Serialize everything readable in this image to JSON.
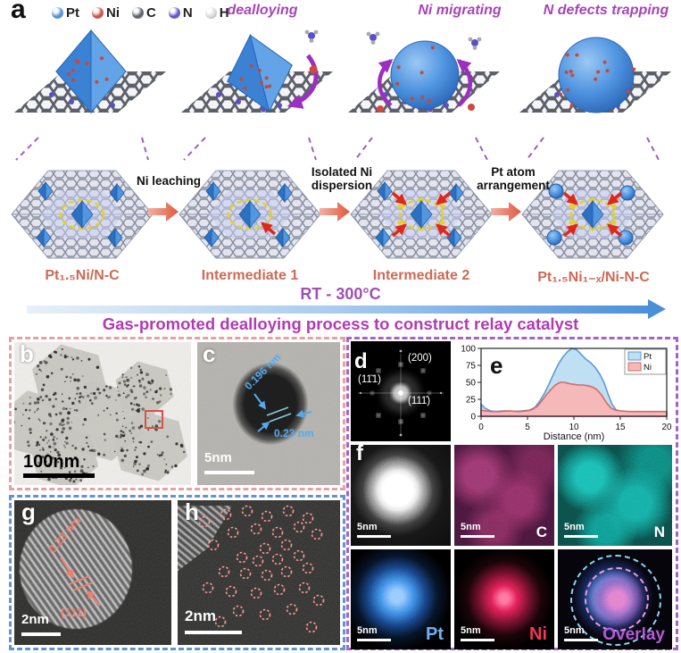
{
  "colors": {
    "accent_magenta": "#b23ab5",
    "accent_purple": "#a843b8",
    "structure_red": "#cd6a55",
    "box_bc_border": "#e8a0a0",
    "box_gh_border": "#6292d2",
    "box_def_border": "#a563c8",
    "process_arrow_blue": "#4a90d9"
  },
  "panel_a": {
    "label": "a",
    "legend": [
      {
        "element": "Pt",
        "color": "#4a90d9"
      },
      {
        "element": "Ni",
        "color": "#cf4a3e"
      },
      {
        "element": "C",
        "color": "#555a64"
      },
      {
        "element": "N",
        "color": "#5b4fc9"
      },
      {
        "element": "H",
        "color": "#d9d9d9"
      }
    ],
    "stage_captions": [
      "dealloying",
      "Ni migrating",
      "N defects trapping"
    ],
    "step_labels": [
      [
        "Ni leaching",
        ""
      ],
      [
        "Isolated Ni",
        "dispersion"
      ],
      [
        "Pt atom",
        "arrangement"
      ]
    ],
    "structure_labels": [
      "Pt₁.₅Ni/N-C",
      "Intermediate 1",
      "Intermediate 2",
      "Pt₁.₅Ni₁₋ₓ/Ni-N-C"
    ],
    "temperature": "RT - 300°C",
    "process_caption": "Gas-promoted dealloying process to construct relay catalyst"
  },
  "panel_b": {
    "label": "b",
    "scale_bar": "100nm"
  },
  "panel_c": {
    "label": "c",
    "d_spacing_1": "0.196 nm",
    "d_spacing_2": "0.23 nm",
    "scale_bar": "5nm"
  },
  "panel_d": {
    "label": "d",
    "reflection_left": "(11̄1)",
    "reflection_top": "(200)",
    "reflection_right": "(111̄)"
  },
  "panel_e": {
    "label": "e"
  },
  "chart_data": {
    "type": "area",
    "title": "",
    "xlabel": "Distance (nm)",
    "ylabel": "",
    "xlim": [
      0,
      20
    ],
    "ylim": [
      0,
      100
    ],
    "xticks": [
      0,
      5,
      10,
      15,
      20
    ],
    "yticks": [
      0,
      25,
      50,
      75,
      100
    ],
    "grid": false,
    "legend_position": "top-right",
    "series": [
      {
        "name": "Pt",
        "fill": "#bfdff2",
        "stroke": "#5b9bd5",
        "points": [
          [
            0,
            18
          ],
          [
            0.4,
            12
          ],
          [
            1,
            8
          ],
          [
            1.5,
            7
          ],
          [
            2.5,
            8
          ],
          [
            3.5,
            7
          ],
          [
            4.5,
            8
          ],
          [
            5.2,
            9
          ],
          [
            5.8,
            13
          ],
          [
            6.3,
            22
          ],
          [
            6.8,
            33
          ],
          [
            7.3,
            47
          ],
          [
            7.8,
            62
          ],
          [
            8.3,
            76
          ],
          [
            8.8,
            87
          ],
          [
            9.3,
            95
          ],
          [
            9.8,
            100
          ],
          [
            10.3,
            98
          ],
          [
            10.8,
            91
          ],
          [
            11.3,
            84
          ],
          [
            11.8,
            79
          ],
          [
            12.3,
            72
          ],
          [
            12.8,
            62
          ],
          [
            13.3,
            48
          ],
          [
            13.7,
            32
          ],
          [
            14.1,
            18
          ],
          [
            14.5,
            10
          ],
          [
            15,
            7
          ],
          [
            16,
            6
          ],
          [
            17,
            7
          ],
          [
            18,
            6
          ],
          [
            19,
            6
          ],
          [
            20,
            6
          ]
        ]
      },
      {
        "name": "Ni",
        "fill": "#f6b9b9",
        "stroke": "#d46a6a",
        "points": [
          [
            0,
            9
          ],
          [
            0.5,
            8
          ],
          [
            1,
            7
          ],
          [
            2,
            7
          ],
          [
            3,
            8
          ],
          [
            4,
            7
          ],
          [
            5,
            8
          ],
          [
            5.5,
            10
          ],
          [
            6,
            14
          ],
          [
            6.5,
            22
          ],
          [
            7,
            31
          ],
          [
            7.5,
            39
          ],
          [
            8,
            46
          ],
          [
            8.5,
            50
          ],
          [
            9,
            50
          ],
          [
            9.5,
            48
          ],
          [
            10,
            47
          ],
          [
            10.5,
            46
          ],
          [
            11,
            46
          ],
          [
            11.5,
            45
          ],
          [
            12,
            43
          ],
          [
            12.5,
            39
          ],
          [
            13,
            31
          ],
          [
            13.5,
            20
          ],
          [
            14,
            12
          ],
          [
            14.5,
            9
          ],
          [
            15,
            8
          ],
          [
            16,
            7
          ],
          [
            17,
            7
          ],
          [
            18,
            7
          ],
          [
            19,
            7
          ],
          [
            20,
            7
          ]
        ]
      }
    ]
  },
  "panel_f": {
    "label": "f",
    "maps": [
      {
        "element": "",
        "scale_bar": "5nm"
      },
      {
        "element": "C",
        "scale_bar": "5nm"
      },
      {
        "element": "N",
        "scale_bar": "5nm"
      },
      {
        "element": "Pt",
        "scale_bar": "5nm"
      },
      {
        "element": "Ni",
        "scale_bar": "5nm"
      },
      {
        "element": "Overlay",
        "scale_bar": "5nm"
      }
    ]
  },
  "panel_g": {
    "label": "g",
    "d_spacing": "0.23 nm",
    "plane": "(111)",
    "scale_bar": "2nm"
  },
  "panel_h": {
    "label": "h",
    "scale_bar": "2nm"
  }
}
